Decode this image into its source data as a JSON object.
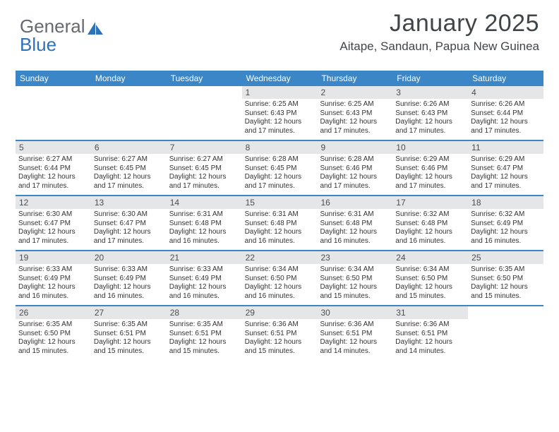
{
  "brand": {
    "word1": "General",
    "word2": "Blue"
  },
  "title": "January 2025",
  "subtitle": "Aitape, Sandaun, Papua New Guinea",
  "colors": {
    "header_bg": "#3b86c6",
    "header_text": "#ffffff",
    "daynum_bg": "#e5e6e8",
    "rule": "#3b86c6",
    "body_text": "#333333",
    "title_text": "#404549",
    "brand_gray": "#666a6e",
    "brand_blue": "#2f72b6",
    "page_bg": "#ffffff"
  },
  "day_headers": [
    "Sunday",
    "Monday",
    "Tuesday",
    "Wednesday",
    "Thursday",
    "Friday",
    "Saturday"
  ],
  "weeks": [
    [
      null,
      null,
      null,
      {
        "n": "1",
        "sr": "6:25 AM",
        "ss": "6:43 PM",
        "dl": "12 hours and 17 minutes."
      },
      {
        "n": "2",
        "sr": "6:25 AM",
        "ss": "6:43 PM",
        "dl": "12 hours and 17 minutes."
      },
      {
        "n": "3",
        "sr": "6:26 AM",
        "ss": "6:43 PM",
        "dl": "12 hours and 17 minutes."
      },
      {
        "n": "4",
        "sr": "6:26 AM",
        "ss": "6:44 PM",
        "dl": "12 hours and 17 minutes."
      }
    ],
    [
      {
        "n": "5",
        "sr": "6:27 AM",
        "ss": "6:44 PM",
        "dl": "12 hours and 17 minutes."
      },
      {
        "n": "6",
        "sr": "6:27 AM",
        "ss": "6:45 PM",
        "dl": "12 hours and 17 minutes."
      },
      {
        "n": "7",
        "sr": "6:27 AM",
        "ss": "6:45 PM",
        "dl": "12 hours and 17 minutes."
      },
      {
        "n": "8",
        "sr": "6:28 AM",
        "ss": "6:45 PM",
        "dl": "12 hours and 17 minutes."
      },
      {
        "n": "9",
        "sr": "6:28 AM",
        "ss": "6:46 PM",
        "dl": "12 hours and 17 minutes."
      },
      {
        "n": "10",
        "sr": "6:29 AM",
        "ss": "6:46 PM",
        "dl": "12 hours and 17 minutes."
      },
      {
        "n": "11",
        "sr": "6:29 AM",
        "ss": "6:47 PM",
        "dl": "12 hours and 17 minutes."
      }
    ],
    [
      {
        "n": "12",
        "sr": "6:30 AM",
        "ss": "6:47 PM",
        "dl": "12 hours and 17 minutes."
      },
      {
        "n": "13",
        "sr": "6:30 AM",
        "ss": "6:47 PM",
        "dl": "12 hours and 17 minutes."
      },
      {
        "n": "14",
        "sr": "6:31 AM",
        "ss": "6:48 PM",
        "dl": "12 hours and 16 minutes."
      },
      {
        "n": "15",
        "sr": "6:31 AM",
        "ss": "6:48 PM",
        "dl": "12 hours and 16 minutes."
      },
      {
        "n": "16",
        "sr": "6:31 AM",
        "ss": "6:48 PM",
        "dl": "12 hours and 16 minutes."
      },
      {
        "n": "17",
        "sr": "6:32 AM",
        "ss": "6:48 PM",
        "dl": "12 hours and 16 minutes."
      },
      {
        "n": "18",
        "sr": "6:32 AM",
        "ss": "6:49 PM",
        "dl": "12 hours and 16 minutes."
      }
    ],
    [
      {
        "n": "19",
        "sr": "6:33 AM",
        "ss": "6:49 PM",
        "dl": "12 hours and 16 minutes."
      },
      {
        "n": "20",
        "sr": "6:33 AM",
        "ss": "6:49 PM",
        "dl": "12 hours and 16 minutes."
      },
      {
        "n": "21",
        "sr": "6:33 AM",
        "ss": "6:49 PM",
        "dl": "12 hours and 16 minutes."
      },
      {
        "n": "22",
        "sr": "6:34 AM",
        "ss": "6:50 PM",
        "dl": "12 hours and 16 minutes."
      },
      {
        "n": "23",
        "sr": "6:34 AM",
        "ss": "6:50 PM",
        "dl": "12 hours and 15 minutes."
      },
      {
        "n": "24",
        "sr": "6:34 AM",
        "ss": "6:50 PM",
        "dl": "12 hours and 15 minutes."
      },
      {
        "n": "25",
        "sr": "6:35 AM",
        "ss": "6:50 PM",
        "dl": "12 hours and 15 minutes."
      }
    ],
    [
      {
        "n": "26",
        "sr": "6:35 AM",
        "ss": "6:50 PM",
        "dl": "12 hours and 15 minutes."
      },
      {
        "n": "27",
        "sr": "6:35 AM",
        "ss": "6:51 PM",
        "dl": "12 hours and 15 minutes."
      },
      {
        "n": "28",
        "sr": "6:35 AM",
        "ss": "6:51 PM",
        "dl": "12 hours and 15 minutes."
      },
      {
        "n": "29",
        "sr": "6:36 AM",
        "ss": "6:51 PM",
        "dl": "12 hours and 15 minutes."
      },
      {
        "n": "30",
        "sr": "6:36 AM",
        "ss": "6:51 PM",
        "dl": "12 hours and 14 minutes."
      },
      {
        "n": "31",
        "sr": "6:36 AM",
        "ss": "6:51 PM",
        "dl": "12 hours and 14 minutes."
      },
      null
    ]
  ],
  "labels": {
    "sunrise": "Sunrise:",
    "sunset": "Sunset:",
    "daylight": "Daylight:"
  }
}
